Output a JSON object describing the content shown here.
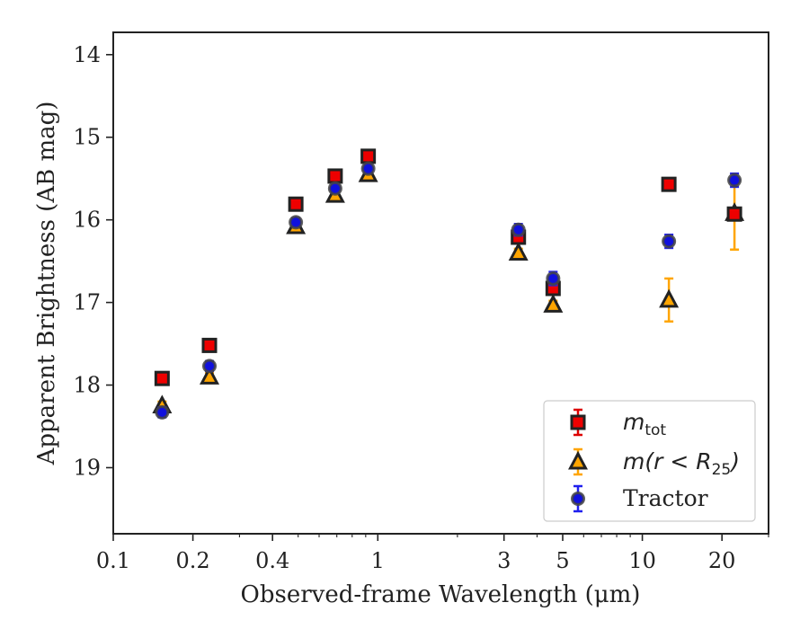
{
  "chart_data": {
    "type": "scatter",
    "title": "",
    "xlabel": "Observed-frame Wavelength (μm)",
    "ylabel": "Apparent Brightness (AB mag)",
    "xscale": "log",
    "xlim": [
      0.1,
      30
    ],
    "ylim": [
      19.8,
      13.73
    ],
    "y_inverted": true,
    "grid": false,
    "legend_position": "lower-right",
    "x_ticks": [
      {
        "value": 0.1,
        "label": "0.1"
      },
      {
        "value": 0.2,
        "label": "0.2"
      },
      {
        "value": 0.4,
        "label": "0.4"
      },
      {
        "value": 1,
        "label": "1"
      },
      {
        "value": 3,
        "label": "3"
      },
      {
        "value": 5,
        "label": "5"
      },
      {
        "value": 10,
        "label": "10"
      },
      {
        "value": 20,
        "label": "20"
      }
    ],
    "y_ticks": [
      {
        "value": 14,
        "label": "14"
      },
      {
        "value": 15,
        "label": "15"
      },
      {
        "value": 16,
        "label": "16"
      },
      {
        "value": 17,
        "label": "17"
      },
      {
        "value": 18,
        "label": "18"
      },
      {
        "value": 19,
        "label": "19"
      }
    ],
    "series": [
      {
        "name": "$m_{\\rm tot}$",
        "legend_main": "m",
        "legend_sub": "tot",
        "marker": "square",
        "face_color": "#ee0000",
        "edge_color": "#222222",
        "error_color": "#dd0000",
        "points": [
          {
            "x": 0.153,
            "y": 17.92,
            "err": 0.05
          },
          {
            "x": 0.231,
            "y": 17.52,
            "err": 0.05
          },
          {
            "x": 0.49,
            "y": 15.81,
            "err": 0.05
          },
          {
            "x": 0.69,
            "y": 15.47,
            "err": 0.06
          },
          {
            "x": 0.92,
            "y": 15.23,
            "err": 0.07
          },
          {
            "x": 3.4,
            "y": 16.21,
            "err": 0.05
          },
          {
            "x": 4.6,
            "y": 16.83,
            "err": 0.05
          },
          {
            "x": 12.6,
            "y": 15.57,
            "err": 0.04
          },
          {
            "x": 22.3,
            "y": 15.93,
            "err": 0.05
          }
        ]
      },
      {
        "name": "$m(r<R_{25})$",
        "legend_main": "m(r < R",
        "legend_sub": "25",
        "legend_tail": ")",
        "marker": "triangle",
        "face_color": "#ffa500",
        "edge_color": "#222222",
        "error_color": "#ffa500",
        "points": [
          {
            "x": 0.153,
            "y": 18.25,
            "err": 0.05
          },
          {
            "x": 0.231,
            "y": 17.9,
            "err": 0.05
          },
          {
            "x": 0.49,
            "y": 16.08,
            "err": 0.05
          },
          {
            "x": 0.69,
            "y": 15.7,
            "err": 0.05
          },
          {
            "x": 0.92,
            "y": 15.45,
            "err": 0.05
          },
          {
            "x": 3.4,
            "y": 16.4,
            "err": 0.05
          },
          {
            "x": 4.6,
            "y": 17.03,
            "err": 0.05
          },
          {
            "x": 12.6,
            "y": 16.97,
            "err": 0.26
          },
          {
            "x": 22.3,
            "y": 15.92,
            "err": 0.44
          }
        ]
      },
      {
        "name": "Tractor",
        "marker": "circle",
        "face_color": "#1010dd",
        "edge_color": "#444444",
        "error_color": "#2020ee",
        "points": [
          {
            "x": 0.153,
            "y": 18.33,
            "err": 0.06
          },
          {
            "x": 0.231,
            "y": 17.77,
            "err": 0.06
          },
          {
            "x": 0.49,
            "y": 16.03,
            "err": 0.05
          },
          {
            "x": 0.69,
            "y": 15.62,
            "err": 0.05
          },
          {
            "x": 0.92,
            "y": 15.38,
            "err": 0.05
          },
          {
            "x": 3.4,
            "y": 16.12,
            "err": 0.07
          },
          {
            "x": 4.6,
            "y": 16.71,
            "err": 0.08
          },
          {
            "x": 12.6,
            "y": 16.26,
            "err": 0.08
          },
          {
            "x": 22.3,
            "y": 15.52,
            "err": 0.08
          }
        ]
      }
    ]
  }
}
